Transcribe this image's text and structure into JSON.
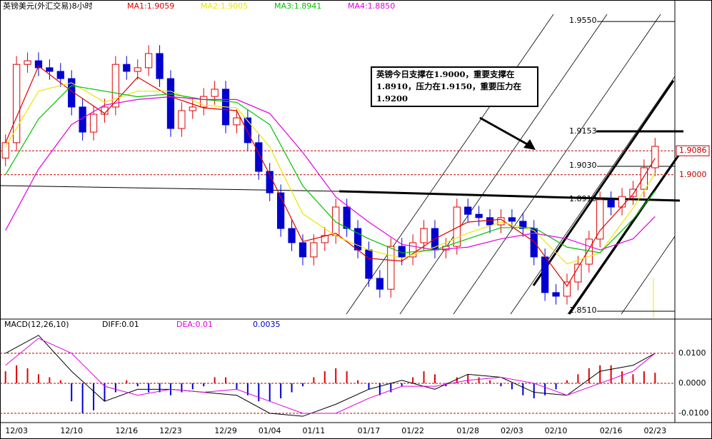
{
  "chart_data": [
    {
      "type": "candlestick",
      "title": "英镑美元(外汇交易)8小时",
      "categories": [
        null,
        "12/03",
        null,
        null,
        null,
        null,
        "12/10",
        null,
        null,
        null,
        null,
        "12/16",
        null,
        null,
        null,
        "12/23",
        null,
        null,
        null,
        null,
        "12/29",
        null,
        null,
        null,
        "01/04",
        null,
        null,
        null,
        "01/11",
        null,
        null,
        null,
        null,
        "01/17",
        null,
        null,
        null,
        "01/22",
        null,
        null,
        null,
        null,
        "01/28",
        null,
        null,
        null,
        "02/03",
        null,
        null,
        null,
        "02/10",
        null,
        null,
        null,
        null,
        "02/16",
        null,
        null,
        null,
        "02/23"
      ],
      "open": [
        1.906,
        1.9115,
        1.9396,
        1.9409,
        1.9384,
        1.9371,
        1.9345,
        1.9243,
        1.9153,
        1.9217,
        1.9243,
        1.9396,
        1.9371,
        1.9384,
        1.9435,
        1.9345,
        1.9166,
        1.923,
        1.9243,
        1.9281,
        1.9307,
        1.9179,
        1.9204,
        1.9115,
        1.9012,
        1.8935,
        1.8807,
        1.8756,
        1.8705,
        1.8756,
        1.8782,
        1.8884,
        1.8807,
        1.873,
        1.8628,
        1.8589,
        1.8743,
        1.8705,
        1.8756,
        1.8807,
        1.873,
        1.8743,
        1.8884,
        1.8858,
        1.8846,
        1.882,
        1.8846,
        1.8833,
        1.8807,
        1.8705,
        1.8577,
        1.8564,
        1.8615,
        1.8679,
        1.8769,
        1.891,
        1.8884,
        1.8922,
        1.8948,
        1.9025
      ],
      "high": [
        1.9145,
        1.9426,
        1.9439,
        1.9439,
        1.9414,
        1.9401,
        1.9375,
        1.9273,
        1.9247,
        1.9273,
        1.9426,
        1.9426,
        1.9414,
        1.9465,
        1.9465,
        1.9375,
        1.926,
        1.9273,
        1.9311,
        1.9337,
        1.9337,
        1.9234,
        1.9234,
        1.9145,
        1.9042,
        1.8965,
        1.8837,
        1.8786,
        1.8786,
        1.8812,
        1.8914,
        1.8914,
        1.8837,
        1.876,
        1.8658,
        1.8773,
        1.8773,
        1.8786,
        1.8837,
        1.8837,
        1.8773,
        1.8914,
        1.8914,
        1.8888,
        1.8876,
        1.8876,
        1.8876,
        1.8863,
        1.8837,
        1.8735,
        1.8607,
        1.8645,
        1.8709,
        1.8799,
        1.894,
        1.894,
        1.8952,
        1.8978,
        1.9055,
        1.9132
      ],
      "low": [
        1.903,
        1.9085,
        1.9366,
        1.9354,
        1.9341,
        1.9315,
        1.9213,
        1.9123,
        1.9123,
        1.9187,
        1.9213,
        1.9341,
        1.9341,
        1.9354,
        1.9315,
        1.9136,
        1.9136,
        1.92,
        1.9213,
        1.9251,
        1.9149,
        1.9149,
        1.9085,
        1.8982,
        1.8905,
        1.8777,
        1.8726,
        1.8675,
        1.8675,
        1.8726,
        1.8752,
        1.8777,
        1.87,
        1.8598,
        1.8559,
        1.8559,
        1.8675,
        1.8675,
        1.8726,
        1.87,
        1.87,
        1.8713,
        1.8828,
        1.8816,
        1.879,
        1.879,
        1.8803,
        1.8777,
        1.8675,
        1.8547,
        1.8534,
        1.8534,
        1.8585,
        1.8649,
        1.8739,
        1.8854,
        1.8854,
        1.8892,
        1.8918,
        1.8995
      ],
      "close": [
        1.9115,
        1.9396,
        1.9409,
        1.9384,
        1.9371,
        1.9345,
        1.9243,
        1.9153,
        1.9217,
        1.9243,
        1.9396,
        1.9371,
        1.9384,
        1.9435,
        1.9345,
        1.9166,
        1.923,
        1.9243,
        1.9281,
        1.9307,
        1.9179,
        1.9204,
        1.9115,
        1.9012,
        1.8935,
        1.8807,
        1.8756,
        1.8705,
        1.8756,
        1.8782,
        1.8884,
        1.8807,
        1.873,
        1.8628,
        1.8589,
        1.8743,
        1.8705,
        1.8756,
        1.8807,
        1.873,
        1.8743,
        1.8884,
        1.8858,
        1.8846,
        1.882,
        1.8846,
        1.8833,
        1.8807,
        1.8705,
        1.8577,
        1.8564,
        1.8615,
        1.8679,
        1.8769,
        1.891,
        1.8884,
        1.8922,
        1.8948,
        1.9025,
        1.9102
      ],
      "up_color": "#e00000",
      "down_color": "#0000d0",
      "ylim": [
        1.8487,
        1.9581
      ],
      "yticks": [
        {
          "value": 1.955,
          "label": "1.9550"
        },
        1.9153,
        {
          "value": 1.903,
          "label": "1.9030"
        },
        {
          "value": 1.891,
          "label": "1.8910"
        },
        {
          "value": 1.851,
          "label": "1.8510"
        }
      ],
      "right_ticks": [
        1.9086,
        {
          "value": 1.9,
          "label": "1.9000"
        }
      ],
      "moving_averages": {
        "x": [
          0,
          3,
          6,
          9,
          12,
          15,
          18,
          21,
          24,
          27,
          30,
          33,
          36,
          39,
          42,
          45,
          48,
          51,
          54,
          57,
          59
        ],
        "series": [
          {
            "name": "MA1:1.9059",
            "color": "#e00000",
            "values": [
              1.9115,
              1.939,
              1.93,
              1.922,
              1.935,
              1.928,
              1.924,
              1.923,
              1.9,
              1.876,
              1.879,
              1.87,
              1.869,
              1.877,
              1.883,
              1.884,
              1.876,
              1.86,
              1.88,
              1.893,
              1.9059
            ]
          },
          {
            "name": "MA2:1.9005",
            "color": "#e8e800",
            "values": [
              1.91,
              1.93,
              1.933,
              1.926,
              1.93,
              1.93,
              1.925,
              1.924,
              1.91,
              1.886,
              1.878,
              1.873,
              1.87,
              1.874,
              1.879,
              1.883,
              1.88,
              1.868,
              1.872,
              1.888,
              1.9005
            ]
          },
          {
            "name": "MA3:1.8941",
            "color": "#00c000",
            "values": [
              1.9,
              1.92,
              1.932,
              1.93,
              1.928,
              1.929,
              1.927,
              1.926,
              1.918,
              1.896,
              1.883,
              1.877,
              1.872,
              1.873,
              1.877,
              1.881,
              1.881,
              1.874,
              1.872,
              1.884,
              1.8941
            ]
          },
          {
            "name": "MA4:1.8850",
            "color": "#e000e0",
            "values": [
              1.88,
              1.902,
              1.918,
              1.925,
              1.927,
              1.928,
              1.927,
              1.927,
              1.922,
              1.908,
              1.892,
              1.883,
              1.875,
              1.873,
              1.874,
              1.877,
              1.879,
              1.877,
              1.873,
              1.877,
              1.885
            ]
          }
        ]
      },
      "annotation": "英镑今日支撑在1.9000，重要支撑在1.8910，压力在1.9150，重要压力在1.9200"
    },
    {
      "type": "macd",
      "title": "MACD(12,26,10)",
      "ylim": [
        -0.0131,
        0.0214
      ],
      "yticks": [
        {
          "value": 0.01,
          "label": "0.0100"
        },
        {
          "value": 0,
          "label": "0.0000"
        },
        {
          "value": -0.01,
          "label": "-0.0100"
        }
      ],
      "histogram": {
        "name": "0.0035",
        "up_color": "#e00000",
        "down_color": "#0000d0",
        "values": [
          0.004,
          0.006,
          0.005,
          0.003,
          0.002,
          0.001,
          -0.006,
          -0.01,
          -0.009,
          -0.006,
          -0.003,
          0.001,
          -0.001,
          -0.003,
          -0.003,
          -0.004,
          -0.003,
          -0.002,
          -0.001,
          0.002,
          0.002,
          -0.002,
          -0.004,
          -0.006,
          -0.006,
          -0.005,
          -0.003,
          -0.001,
          0.002,
          0.004,
          0.005,
          0.004,
          0.001,
          -0.002,
          -0.004,
          -0.003,
          -0.001,
          0.002,
          0.004,
          0.003,
          -0.001,
          0.002,
          0.003,
          0.002,
          0.001,
          -0.001,
          -0.002,
          -0.004,
          -0.005,
          -0.004,
          -0.002,
          0.001,
          0.003,
          0.005,
          0.006,
          0.006,
          0.004,
          0.003,
          0.004,
          0.0035
        ]
      },
      "x": [
        0,
        3,
        6,
        9,
        12,
        15,
        18,
        21,
        24,
        27,
        30,
        33,
        36,
        39,
        42,
        45,
        48,
        51,
        54,
        57,
        59
      ],
      "series": [
        {
          "name": "DIFF:0.01",
          "color": "#000000",
          "values": [
            0.01,
            0.016,
            0.004,
            -0.006,
            -0.002,
            -0.002,
            -0.003,
            -0.004,
            -0.01,
            -0.011,
            -0.007,
            -0.002,
            0.001,
            -0.002,
            0.003,
            0.002,
            -0.003,
            -0.004,
            0.004,
            0.006,
            0.01
          ]
        },
        {
          "name": "DEA:0.01",
          "color": "#e000e0",
          "values": [
            0.006,
            0.015,
            0.01,
            -0.001,
            -0.004,
            -0.002,
            -0.003,
            -0.002,
            -0.006,
            -0.01,
            -0.01,
            -0.005,
            -0.001,
            -0.001,
            0.001,
            0.002,
            0.0,
            -0.004,
            0.0,
            0.004,
            0.01
          ]
        }
      ]
    }
  ]
}
